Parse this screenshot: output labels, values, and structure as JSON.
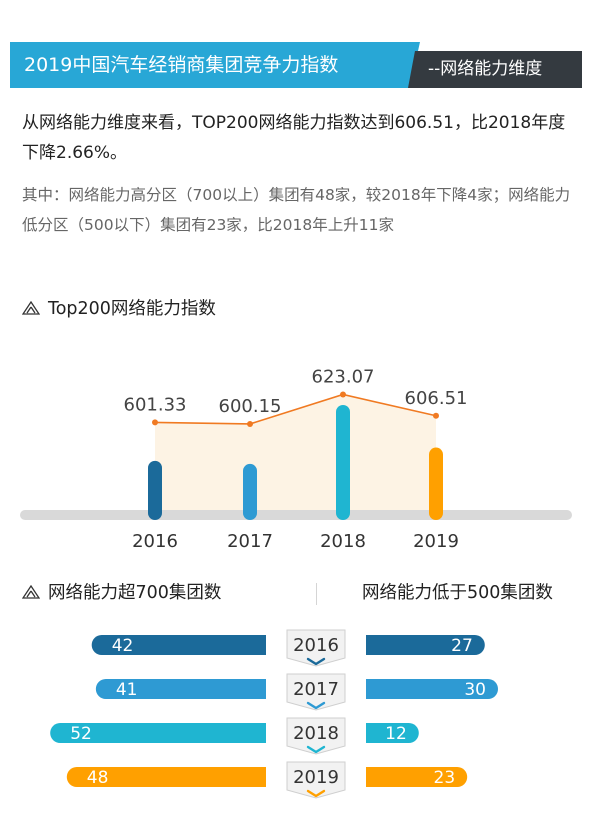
{
  "header": {
    "title": "2019中国汽车经销商集团竞争力指数",
    "subtitle": "--网络能力维度"
  },
  "intro": {
    "main": "从网络能力维度来看，TOP200网络能力指数达到606.51，比2018年度下降2.66%。",
    "detail": "其中：网络能力高分区（700以上）集团有48家，较2018年下降4家；网络能力低分区（500以下）集团有23家，比2018年上升11家"
  },
  "colors": {
    "banner_blue": "#28a7d6",
    "banner_dark": "#343a40",
    "c2016": "#1b6a9a",
    "c2017": "#2e9ad3",
    "c2018": "#1fb5d1",
    "c2019": "#ffa000",
    "trend_line": "#f07a22",
    "area_fill": "#fdf3e4"
  },
  "chart_data": [
    {
      "type": "bar",
      "title": "Top200网络能力指数",
      "categories": [
        "2016",
        "2017",
        "2018",
        "2019"
      ],
      "values": [
        601.33,
        600.15,
        623.07,
        606.51
      ],
      "value_labels": [
        "601.33",
        "600.15",
        "623.07",
        "606.51"
      ],
      "overlay": "line",
      "xlabel": "",
      "ylabel": ""
    },
    {
      "type": "bar",
      "orientation": "horizontal-diverging",
      "categories": [
        "2016",
        "2017",
        "2018",
        "2019"
      ],
      "series": [
        {
          "name": "网络能力超700集团数",
          "values": [
            42,
            41,
            52,
            48
          ]
        },
        {
          "name": "网络能力低于500集团数",
          "values": [
            27,
            30,
            12,
            23
          ]
        }
      ]
    }
  ]
}
